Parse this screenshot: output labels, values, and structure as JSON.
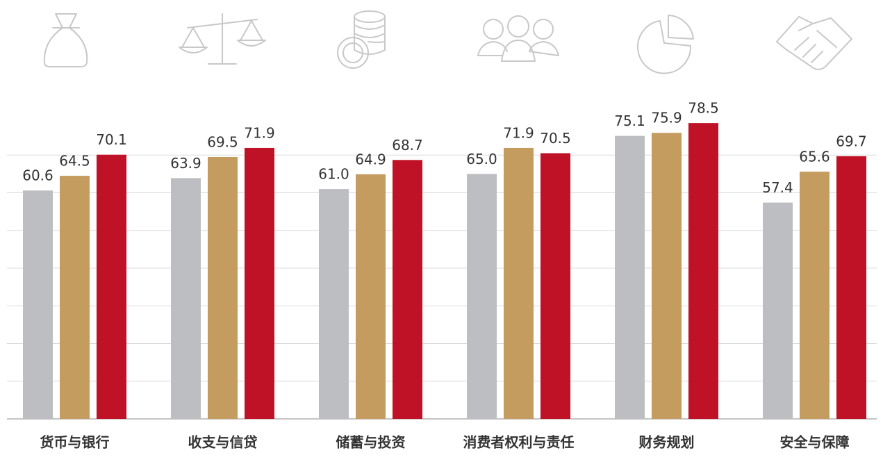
{
  "chart_data": {
    "type": "bar",
    "categories": [
      "货币与银行",
      "收支与信贷",
      "储蓄与投资",
      "消费者权利与责任",
      "财务规划",
      "安全与保障"
    ],
    "series": [
      {
        "color": "#bdbec1",
        "values": [
          60.6,
          63.9,
          61.0,
          65.0,
          75.1,
          57.4
        ],
        "value_labels": [
          "60.6",
          "63.9",
          "61.0",
          "65.0",
          "75.1",
          "57.4"
        ]
      },
      {
        "color": "#c59c60",
        "values": [
          64.5,
          69.5,
          64.9,
          71.9,
          75.9,
          65.6
        ]
      },
      {
        "color": "#c01227",
        "values": [
          70.1,
          71.9,
          68.7,
          70.5,
          78.5,
          69.7
        ]
      }
    ],
    "ylim": [
      0,
      80
    ],
    "yticks": [
      0,
      10,
      20,
      30,
      40,
      50,
      60,
      70
    ],
    "grid": true
  }
}
